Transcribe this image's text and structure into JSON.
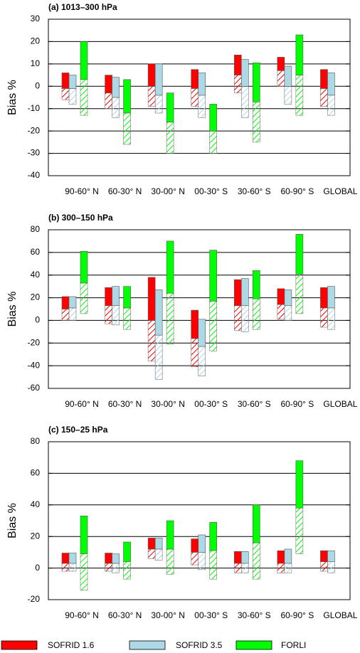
{
  "chart_data": [
    {
      "type": "bar",
      "title": "(a) 1013–300 hPa",
      "y_label": "Bias %",
      "categories": [
        "90-60° N",
        "60-30° N",
        "30-00° N",
        "00-30° S",
        "30-60° S",
        "60-90° S",
        "GLOBAL"
      ],
      "ylim": [
        -40,
        30
      ],
      "yticks": [
        -40,
        -30,
        -20,
        -10,
        0,
        10,
        20,
        30
      ],
      "grid": true,
      "series": [
        {
          "name": "SOFRID 1.6",
          "color": "#ff0000",
          "low": [
            -6,
            -10,
            -9,
            -9,
            -3,
            0,
            -9
          ],
          "mid": [
            -1,
            -3,
            0,
            -1,
            5,
            7,
            -1
          ],
          "high": [
            6,
            5,
            10,
            7.5,
            14,
            13,
            7.5
          ]
        },
        {
          "name": "SOFRID 3.5",
          "color": "#add8e6",
          "low": [
            -8,
            -14,
            -12,
            -14,
            -14,
            -8,
            -13
          ],
          "mid": [
            -1,
            -5,
            -4,
            -4,
            0,
            0,
            -4
          ],
          "high": [
            5,
            4,
            10,
            6,
            12,
            9,
            6
          ]
        },
        {
          "name": "FORLI",
          "color": "#00ff00",
          "low": [
            -13,
            -26,
            -30,
            -30,
            -25,
            -13,
            null
          ],
          "mid": [
            3,
            -12,
            -16,
            -20,
            -7,
            5,
            null
          ],
          "high": [
            20,
            3,
            -3,
            -8,
            10.5,
            23,
            null
          ]
        }
      ]
    },
    {
      "type": "bar",
      "title": "(b) 300–150 hPa",
      "y_label": "Bias %",
      "categories": [
        "90-60° N",
        "60-30° N",
        "30-00° N",
        "00-30° S",
        "30-60° S",
        "60-90° S",
        "GLOBAL"
      ],
      "ylim": [
        -60,
        80
      ],
      "yticks": [
        -60,
        -40,
        -20,
        0,
        20,
        40,
        60,
        80
      ],
      "grid": true,
      "series": [
        {
          "color": "#ff0000",
          "low": [
            0,
            -3,
            -36,
            -41,
            -9,
            1,
            -6
          ],
          "mid": [
            10,
            13,
            0,
            -16,
            13,
            14,
            11
          ],
          "high": [
            21,
            29,
            38,
            9,
            36,
            28,
            29
          ]
        },
        {
          "color": "#add8e6",
          "low": [
            0,
            -4,
            -52,
            -49,
            -10,
            0,
            -8
          ],
          "mid": [
            11,
            13,
            -13,
            -23,
            13,
            13,
            11
          ],
          "high": [
            21,
            30,
            27,
            1,
            37,
            27,
            30
          ]
        },
        {
          "color": "#00ff00",
          "low": [
            6,
            -8,
            -21,
            -27,
            -8,
            6,
            null
          ],
          "mid": [
            33,
            11,
            24,
            17,
            19,
            41,
            null
          ],
          "high": [
            61,
            30,
            70,
            62,
            44,
            76,
            null
          ]
        }
      ]
    },
    {
      "type": "bar",
      "title": "(c) 150–25 hPa",
      "y_label": "Bias %",
      "categories": [
        "90-60° N",
        "60-30° N",
        "30-00° N",
        "00-30° S",
        "30-60° S",
        "60-90° S",
        "GLOBAL"
      ],
      "ylim": [
        -20,
        80
      ],
      "yticks": [
        -20,
        0,
        20,
        40,
        60,
        80
      ],
      "grid": true,
      "series": [
        {
          "color": "#ff0000",
          "low": [
            -2,
            -2,
            6,
            2,
            -3,
            -3,
            -2
          ],
          "mid": [
            3,
            3,
            12,
            10,
            3,
            3,
            4
          ],
          "high": [
            9.5,
            9.5,
            19,
            18.5,
            10.5,
            11,
            11
          ]
        },
        {
          "color": "#add8e6",
          "low": [
            -2,
            -3,
            5,
            -1,
            -3,
            -3,
            -3
          ],
          "mid": [
            3,
            3,
            12,
            10,
            3,
            3,
            4
          ],
          "high": [
            9.5,
            9,
            19,
            21,
            10.5,
            12,
            11
          ]
        },
        {
          "color": "#00ff00",
          "low": [
            -14,
            -7,
            -4,
            -7,
            -7,
            9,
            null
          ],
          "mid": [
            9,
            4,
            12,
            11,
            16,
            38,
            null
          ],
          "high": [
            33,
            16.5,
            30,
            29,
            40,
            68,
            null
          ]
        }
      ]
    }
  ]
}
